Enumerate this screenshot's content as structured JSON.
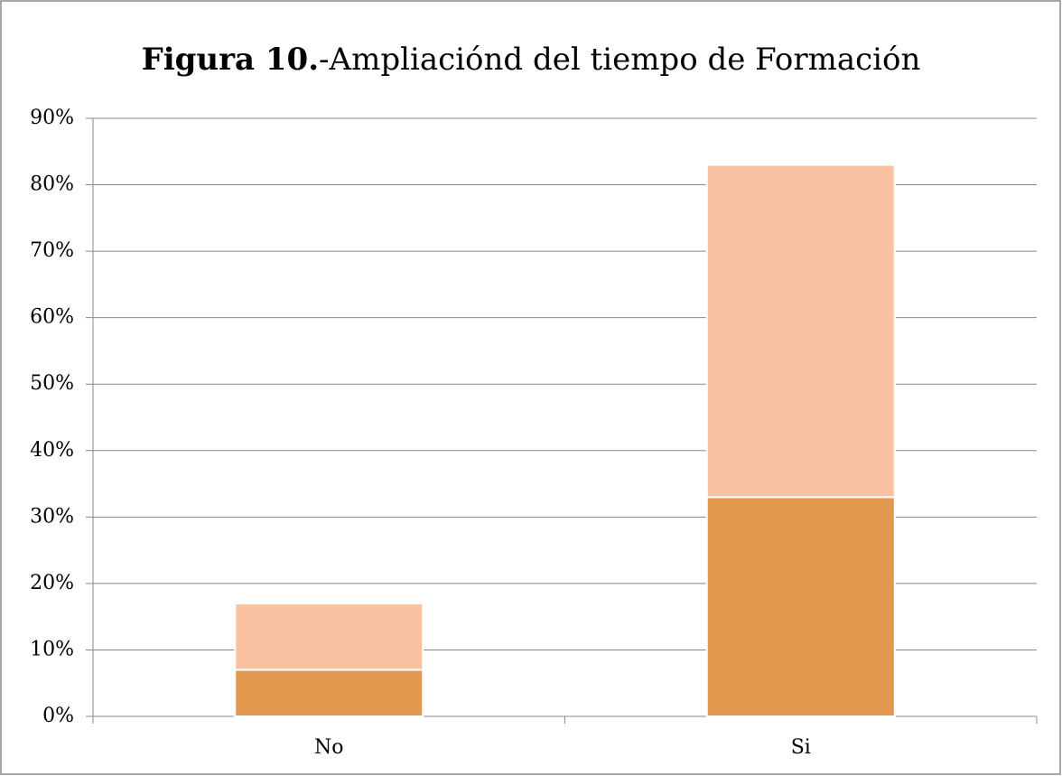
{
  "chart_data": {
    "type": "stacked_bar",
    "title": {
      "bold": "Figura 10.",
      "text": "-Ampliaciónd del tiempo de Formación"
    },
    "categories": [
      "No",
      "Si"
    ],
    "series": [
      {
        "color": "#e2984f",
        "values": [
          7,
          33
        ]
      },
      {
        "color": "#fac2a0",
        "values": [
          10,
          50
        ]
      }
    ],
    "ylim": [
      0,
      90
    ],
    "yticks": [
      {
        "value": 0,
        "label": "0%"
      },
      {
        "value": 10,
        "label": "10%"
      },
      {
        "value": 20,
        "label": "20%"
      },
      {
        "value": 30,
        "label": "30%"
      },
      {
        "value": 40,
        "label": "40%"
      },
      {
        "value": 50,
        "label": "50%"
      },
      {
        "value": 60,
        "label": "60%"
      },
      {
        "value": 70,
        "label": "70%"
      },
      {
        "value": 80,
        "label": "80%"
      },
      {
        "value": 90,
        "label": "90%"
      }
    ],
    "grid": true
  }
}
